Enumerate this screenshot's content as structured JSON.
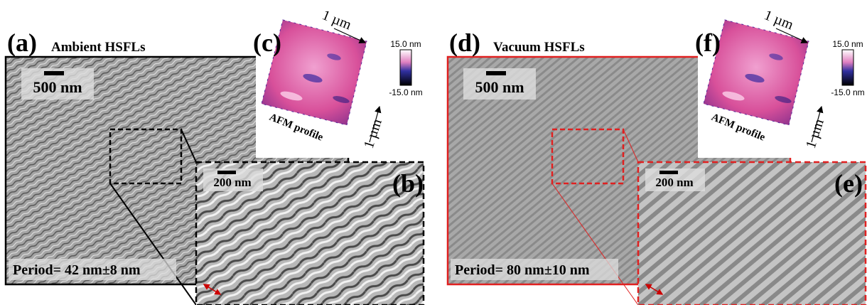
{
  "panels": {
    "a": {
      "label": "(a)",
      "title": "Ambient HSFLs",
      "scale_bar": "500 nm",
      "period": "Period= 42 nm±8 nm"
    },
    "b": {
      "label": "(b)",
      "scale_bar": "200 nm"
    },
    "c": {
      "label": "(c)",
      "axis_top": "1 µm",
      "axis_side": "1 µm",
      "colorbar_max": "15.0 nm",
      "colorbar_min": "-15.0 nm",
      "caption": "AFM profile"
    },
    "d": {
      "label": "(d)",
      "title": "Vacuum HSFLs",
      "scale_bar": "500 nm",
      "period": "Period= 80 nm±10 nm"
    },
    "e": {
      "label": "(e)",
      "scale_bar": "200 nm"
    },
    "f": {
      "label": "(f)",
      "axis_top": "1 µm",
      "axis_side": "1 µm",
      "colorbar_max": "15.0 nm",
      "colorbar_min": "-15.0 nm",
      "caption": "AFM profile"
    }
  }
}
